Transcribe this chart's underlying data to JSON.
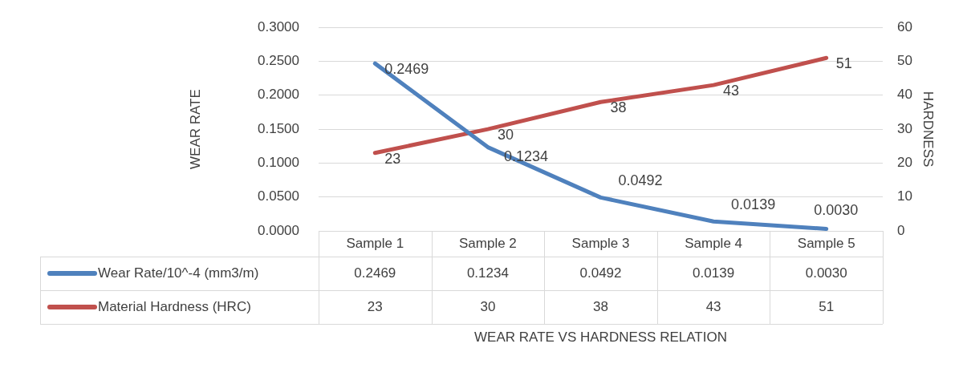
{
  "chart_data": {
    "type": "line",
    "annotations": [
      "WEAR RATE VS HARDNESS RELATION"
    ],
    "ylabel": "WEAR RATE",
    "y2label": "HARDNESS",
    "categories": [
      "Sample 1",
      "Sample 2",
      "Sample 3",
      "Sample 4",
      "Sample 5"
    ],
    "series": [
      {
        "name": "Wear Rate/10^-4 (mm3/m)",
        "color": "#4f81bd",
        "values": [
          0.2469,
          0.1234,
          0.0492,
          0.0139,
          0.003
        ],
        "value_labels": [
          "0.2469",
          "0.1234",
          "0.0492",
          "0.0139",
          "0.0030"
        ]
      },
      {
        "name": "Material Hardness (HRC)",
        "color": "#c0504d",
        "axis": "y2",
        "values": [
          23,
          30,
          38,
          43,
          51
        ],
        "value_labels": [
          "23",
          "30",
          "38",
          "43",
          "51"
        ]
      }
    ],
    "ylim": [
      0,
      0.3
    ],
    "yticks": [
      {
        "value": 0,
        "label": "0.0000"
      },
      {
        "value": 0.05,
        "label": "0.0500"
      },
      {
        "value": 0.1,
        "label": "0.1000"
      },
      {
        "value": 0.15,
        "label": "0.1500"
      },
      {
        "value": 0.2,
        "label": "0.2000"
      },
      {
        "value": 0.25,
        "label": "0.2500"
      },
      {
        "value": 0.3,
        "label": "0.3000"
      }
    ],
    "y2lim": [
      0,
      60
    ],
    "y2ticks": [
      0,
      10,
      20,
      30,
      40,
      50,
      60
    ],
    "grid": "y",
    "legend": "bottom",
    "marker": "none",
    "line_style": "solid"
  }
}
